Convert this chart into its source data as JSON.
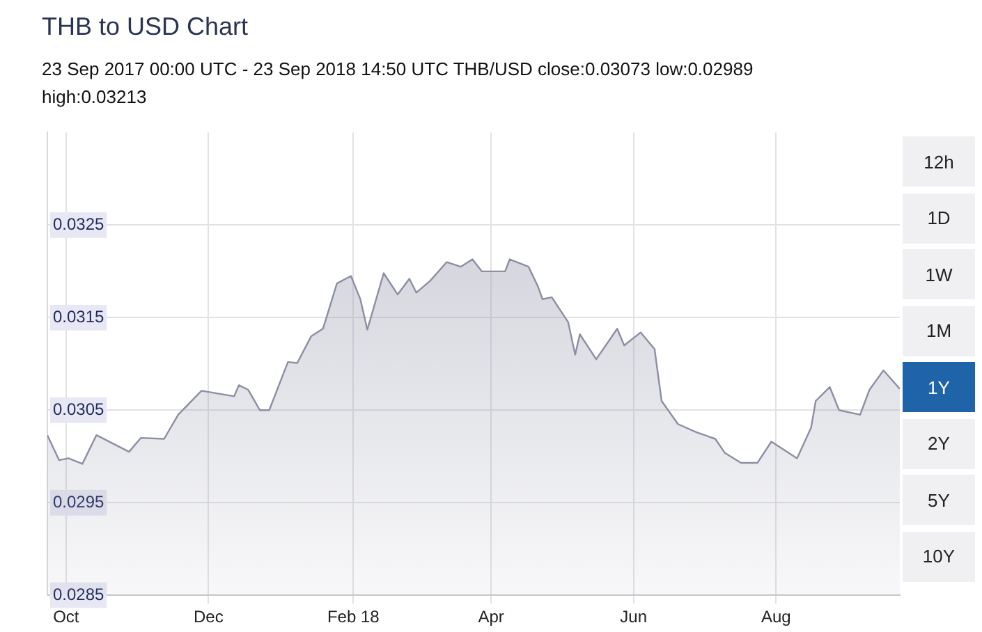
{
  "chart_data": {
    "type": "area",
    "title": "THB to USD Chart",
    "subtitle": "23 Sep 2017 00:00 UTC - 23 Sep 2018 14:50 UTC   THB/USD close:0.03073 low:0.02989 high:0.03213",
    "annotations": [
      "12h",
      "1D",
      "1W",
      "1M",
      "1Y",
      "2Y",
      "5Y",
      "10Y"
    ],
    "x": [
      "2017-09-23",
      "2017-09-28",
      "2017-10-02",
      "2017-10-08",
      "2017-10-14",
      "2017-10-28",
      "2017-11-02",
      "2017-11-12",
      "2017-11-18",
      "2017-11-28",
      "2017-12-12",
      "2017-12-14",
      "2017-12-18",
      "2017-12-23",
      "2017-12-27",
      "2018-01-04",
      "2018-01-08",
      "2018-01-14",
      "2018-01-19",
      "2018-01-25",
      "2018-01-31",
      "2018-02-04",
      "2018-02-07",
      "2018-02-14",
      "2018-02-20",
      "2018-02-25",
      "2018-02-28",
      "2018-03-06",
      "2018-03-13",
      "2018-03-19",
      "2018-03-24",
      "2018-03-28",
      "2018-04-07",
      "2018-04-09",
      "2018-04-17",
      "2018-04-21",
      "2018-04-23",
      "2018-04-27",
      "2018-05-04",
      "2018-05-07",
      "2018-05-09",
      "2018-05-16",
      "2018-05-25",
      "2018-05-28",
      "2018-06-04",
      "2018-06-10",
      "2018-06-13",
      "2018-06-20",
      "2018-06-28",
      "2018-07-06",
      "2018-07-10",
      "2018-07-17",
      "2018-07-24",
      "2018-07-30",
      "2018-08-10",
      "2018-08-16",
      "2018-08-18",
      "2018-08-24",
      "2018-08-28",
      "2018-09-06",
      "2018-09-10",
      "2018-09-16",
      "2018-09-23"
    ],
    "series": [
      {
        "color": "#8c8fa3",
        "values": [
          0.03023,
          0.02996,
          0.02998,
          0.02992,
          0.03023,
          0.03005,
          0.0302,
          0.03019,
          0.03045,
          0.03071,
          0.03065,
          0.03077,
          0.03072,
          0.0305,
          0.0305,
          0.03102,
          0.03101,
          0.0313,
          0.03138,
          0.03187,
          0.03195,
          0.0317,
          0.03137,
          0.03198,
          0.03175,
          0.03192,
          0.03177,
          0.0319,
          0.0321,
          0.03205,
          0.03213,
          0.032,
          0.032,
          0.03213,
          0.03205,
          0.03184,
          0.0317,
          0.03172,
          0.03145,
          0.0311,
          0.03132,
          0.03105,
          0.03138,
          0.0312,
          0.03134,
          0.03116,
          0.0306,
          0.03035,
          0.03026,
          0.03019,
          0.03004,
          0.02993,
          0.02993,
          0.03016,
          0.02998,
          0.03031,
          0.0306,
          0.03075,
          0.0305,
          0.03045,
          0.03072,
          0.03093,
          0.03073
        ]
      }
    ],
    "xlim": [
      "2017-09-23",
      "2018-09-23"
    ],
    "xticks": [
      {
        "value": "2017-10-01",
        "label": "Oct"
      },
      {
        "value": "2017-12-01",
        "label": "Dec"
      },
      {
        "value": "2018-02-01",
        "label": "Feb 18"
      },
      {
        "value": "2018-04-01",
        "label": "Apr"
      },
      {
        "value": "2018-06-01",
        "label": "Jun"
      },
      {
        "value": "2018-08-01",
        "label": "Aug"
      }
    ],
    "ylim": [
      0.0285,
      0.0335
    ],
    "yticks": [
      0.0285,
      0.0295,
      0.0305,
      0.0315,
      0.0325
    ],
    "grid": true,
    "legend": false,
    "marker": "none",
    "line_style": "solid"
  }
}
